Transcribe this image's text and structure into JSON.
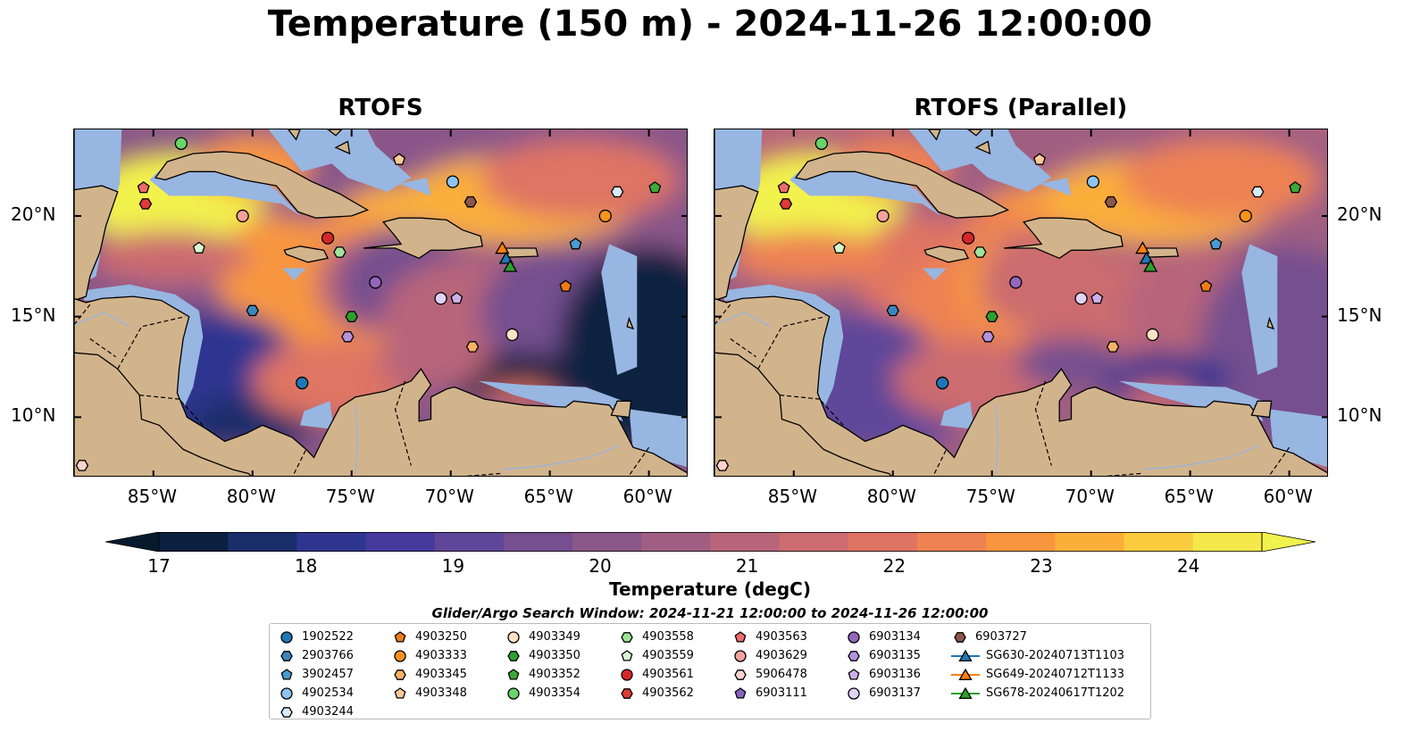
{
  "title": "Temperature (150 m) - 2024-11-26 12:00:00",
  "panels": [
    {
      "title": "RTOFS",
      "variant": "operational"
    },
    {
      "title": "RTOFS (Parallel)",
      "variant": "parallel"
    }
  ],
  "axes": {
    "lon_range": [
      -89,
      -58
    ],
    "lat_range": [
      7,
      24.3
    ],
    "x_ticks": [
      {
        "value": -85,
        "label": "85°W"
      },
      {
        "value": -80,
        "label": "80°W"
      },
      {
        "value": -75,
        "label": "75°W"
      },
      {
        "value": -70,
        "label": "70°W"
      },
      {
        "value": -65,
        "label": "65°W"
      },
      {
        "value": -60,
        "label": "60°W"
      }
    ],
    "y_ticks": [
      {
        "value": 10,
        "label": "10°N"
      },
      {
        "value": 15,
        "label": "15°N"
      },
      {
        "value": 20,
        "label": "20°N"
      }
    ]
  },
  "colorbar": {
    "label": "Temperature (degC)",
    "min": 17,
    "max": 24.5,
    "ticks": [
      "17",
      "18",
      "19",
      "20",
      "21",
      "22",
      "23",
      "24"
    ],
    "colors": [
      "#0b2040",
      "#1a2f6a",
      "#2e3590",
      "#46399e",
      "#5f4699",
      "#754f8f",
      "#8a5789",
      "#a05f82",
      "#b8657a",
      "#cc6c70",
      "#df7463",
      "#ee8252",
      "#f89640",
      "#fbaf3a",
      "#fbcb3f",
      "#f5e84a"
    ],
    "under_color": "#061a2e",
    "over_color": "#f2f24e"
  },
  "map_colors": {
    "land": "#d2b48c",
    "shelf": "#97b6e1",
    "border": "#000000"
  },
  "legend": {
    "title": "Glider/Argo Search Window: 2024-11-21 12:00:00 to 2024-11-26 12:00:00",
    "columns": [
      [
        {
          "id": "1902522",
          "marker": "circle",
          "color": "#1f77b4"
        },
        {
          "id": "2903766",
          "marker": "hexagon",
          "color": "#3b86c0"
        },
        {
          "id": "3902457",
          "marker": "pentagon",
          "color": "#4c9bd0"
        },
        {
          "id": "4902534",
          "marker": "circle",
          "color": "#8fc4ee"
        },
        {
          "id": "4903244",
          "marker": "hexagon",
          "color": "#d8ebfa"
        }
      ],
      [
        {
          "id": "4903250",
          "marker": "pentagon",
          "color": "#ef7b16"
        },
        {
          "id": "4903333",
          "marker": "circle",
          "color": "#f7941d"
        },
        {
          "id": "4903345",
          "marker": "hexagon",
          "color": "#f9b168"
        },
        {
          "id": "4903348",
          "marker": "pentagon",
          "color": "#fbc99a"
        }
      ],
      [
        {
          "id": "4903349",
          "marker": "circle",
          "color": "#fde2c6"
        },
        {
          "id": "4903350",
          "marker": "hexagon",
          "color": "#2ca02c"
        },
        {
          "id": "4903352",
          "marker": "pentagon",
          "color": "#3ea83a"
        },
        {
          "id": "4903354",
          "marker": "circle",
          "color": "#6bd36b"
        }
      ],
      [
        {
          "id": "4903558",
          "marker": "hexagon",
          "color": "#9fe39b"
        },
        {
          "id": "4903559",
          "marker": "pentagon",
          "color": "#d6f7cf"
        },
        {
          "id": "4903561",
          "marker": "circle",
          "color": "#d62728"
        },
        {
          "id": "4903562",
          "marker": "hexagon",
          "color": "#de3a36"
        }
      ],
      [
        {
          "id": "4903563",
          "marker": "pentagon",
          "color": "#ec6b6b"
        },
        {
          "id": "4903629",
          "marker": "circle",
          "color": "#f4a19c"
        },
        {
          "id": "5906478",
          "marker": "hexagon",
          "color": "#fbd2cd"
        },
        {
          "id": "6903111",
          "marker": "pentagon",
          "color": "#8b63c0"
        }
      ],
      [
        {
          "id": "6903134",
          "marker": "circle",
          "color": "#9467bd"
        },
        {
          "id": "6903135",
          "marker": "hexagon",
          "color": "#b592dc"
        },
        {
          "id": "6903136",
          "marker": "pentagon",
          "color": "#ccb0ea"
        },
        {
          "id": "6903137",
          "marker": "circle",
          "color": "#e2d2f6"
        }
      ],
      [
        {
          "id": "6903727",
          "marker": "hexagon",
          "color": "#8c564b"
        },
        {
          "id": "SG630-20240713T1103",
          "marker": "triangle",
          "color": "#1f77b4"
        },
        {
          "id": "SG649-20240712T1133",
          "marker": "triangle",
          "color": "#ff7f0e"
        },
        {
          "id": "SG678-20240617T1202",
          "marker": "triangle",
          "color": "#2ca02c"
        }
      ]
    ]
  },
  "observations": [
    {
      "id": "4903354",
      "lon": -83.6,
      "lat": 23.6
    },
    {
      "id": "4903563",
      "lon": -85.5,
      "lat": 21.4
    },
    {
      "id": "4903562",
      "lon": -85.4,
      "lat": 20.6
    },
    {
      "id": "4903348",
      "lon": -72.6,
      "lat": 22.8
    },
    {
      "id": "4902534",
      "lon": -69.9,
      "lat": 21.7
    },
    {
      "id": "6903727",
      "lon": -69.0,
      "lat": 20.7
    },
    {
      "id": "4903244",
      "lon": -61.6,
      "lat": 21.2
    },
    {
      "id": "4903352",
      "lon": -59.7,
      "lat": 21.4
    },
    {
      "id": "4903333",
      "lon": -62.2,
      "lat": 20.0
    },
    {
      "id": "4903629",
      "lon": -80.5,
      "lat": 20.0
    },
    {
      "id": "4903561",
      "lon": -76.2,
      "lat": 18.9
    },
    {
      "id": "4903558",
      "lon": -75.6,
      "lat": 18.2
    },
    {
      "id": "4903559",
      "lon": -82.7,
      "lat": 18.4
    },
    {
      "id": "3902457",
      "lon": -63.7,
      "lat": 18.6
    },
    {
      "id": "SG649-20240712T1133",
      "lon": -67.4,
      "lat": 18.4
    },
    {
      "id": "SG630-20240713T1103",
      "lon": -67.2,
      "lat": 17.9
    },
    {
      "id": "SG678-20240617T1202",
      "lon": -67.0,
      "lat": 17.5
    },
    {
      "id": "6903134",
      "lon": -73.8,
      "lat": 16.7
    },
    {
      "id": "4903250",
      "lon": -64.2,
      "lat": 16.5
    },
    {
      "id": "6903137",
      "lon": -70.5,
      "lat": 15.9
    },
    {
      "id": "6903136",
      "lon": -69.7,
      "lat": 15.9
    },
    {
      "id": "2903766",
      "lon": -80.0,
      "lat": 15.3
    },
    {
      "id": "4903350",
      "lon": -75.0,
      "lat": 15.0
    },
    {
      "id": "6903135",
      "lon": -75.2,
      "lat": 14.0
    },
    {
      "id": "4903349",
      "lon": -66.9,
      "lat": 14.1
    },
    {
      "id": "4903345",
      "lon": -68.9,
      "lat": 13.5
    },
    {
      "id": "1902522",
      "lon": -77.5,
      "lat": 11.7
    },
    {
      "id": "5906478",
      "lon": -88.6,
      "lat": 7.6
    }
  ]
}
